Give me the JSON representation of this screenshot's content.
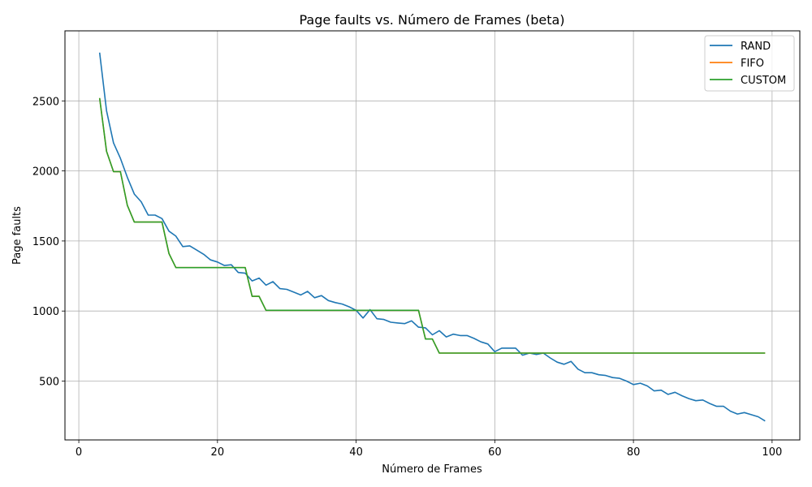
{
  "chart_data": {
    "type": "line",
    "title": "Page faults vs. Número de Frames (beta)",
    "xlabel": "Número de Frames",
    "ylabel": "Page faults",
    "xlim": [
      -2,
      104
    ],
    "ylim": [
      80,
      3000
    ],
    "xticks": [
      0,
      20,
      40,
      60,
      80,
      100
    ],
    "yticks": [
      500,
      1000,
      1500,
      2000,
      2500
    ],
    "grid": true,
    "legend_position": "top-right",
    "x": [
      3,
      4,
      5,
      6,
      7,
      8,
      9,
      10,
      11,
      12,
      13,
      14,
      15,
      16,
      17,
      18,
      19,
      20,
      21,
      22,
      23,
      24,
      25,
      26,
      27,
      28,
      29,
      30,
      31,
      32,
      33,
      34,
      35,
      36,
      37,
      38,
      39,
      40,
      41,
      42,
      43,
      44,
      45,
      46,
      47,
      48,
      49,
      50,
      51,
      52,
      53,
      54,
      55,
      56,
      57,
      58,
      59,
      60,
      61,
      62,
      63,
      64,
      65,
      66,
      67,
      68,
      69,
      70,
      71,
      72,
      73,
      74,
      75,
      76,
      77,
      78,
      79,
      80,
      81,
      82,
      83,
      84,
      85,
      86,
      87,
      88,
      89,
      90,
      91,
      92,
      93,
      94,
      95,
      96,
      97,
      98,
      99
    ],
    "series": [
      {
        "name": "RAND",
        "color": "#1f77b4",
        "values": [
          2845,
          2430,
          2200,
          2090,
          1955,
          1835,
          1780,
          1685,
          1685,
          1660,
          1570,
          1535,
          1460,
          1465,
          1435,
          1405,
          1365,
          1350,
          1325,
          1330,
          1275,
          1270,
          1215,
          1235,
          1185,
          1210,
          1160,
          1155,
          1135,
          1115,
          1140,
          1095,
          1110,
          1075,
          1060,
          1050,
          1030,
          1005,
          950,
          1010,
          945,
          940,
          920,
          915,
          910,
          930,
          885,
          880,
          830,
          860,
          815,
          835,
          825,
          825,
          805,
          780,
          765,
          710,
          735,
          735,
          735,
          685,
          700,
          690,
          700,
          665,
          635,
          620,
          640,
          585,
          560,
          560,
          545,
          540,
          525,
          520,
          500,
          475,
          485,
          465,
          430,
          435,
          405,
          420,
          395,
          375,
          360,
          365,
          340,
          320,
          320,
          285,
          265,
          275,
          260,
          245,
          215
        ]
      },
      {
        "name": "FIFO",
        "color": "#ff7f0e",
        "values": [
          2520,
          2140,
          1995,
          1995,
          1755,
          1635,
          1635,
          1635,
          1635,
          1635,
          1410,
          1310,
          1310,
          1310,
          1310,
          1310,
          1310,
          1310,
          1310,
          1310,
          1310,
          1310,
          1105,
          1105,
          1005,
          1005,
          1005,
          1005,
          1005,
          1005,
          1005,
          1005,
          1005,
          1005,
          1005,
          1005,
          1005,
          1005,
          1005,
          1005,
          1005,
          1005,
          1005,
          1005,
          1005,
          1005,
          1005,
          800,
          800,
          700,
          700,
          700,
          700,
          700,
          700,
          700,
          700,
          700,
          700,
          700,
          700,
          700,
          700,
          700,
          700,
          700,
          700,
          700,
          700,
          700,
          700,
          700,
          700,
          700,
          700,
          700,
          700,
          700,
          700,
          700,
          700,
          700,
          700,
          700,
          700,
          700,
          700,
          700,
          700,
          700,
          700,
          700,
          700,
          700,
          700,
          700,
          700
        ]
      },
      {
        "name": "CUSTOM",
        "color": "#2ca02c",
        "values": [
          2520,
          2140,
          1995,
          1995,
          1755,
          1635,
          1635,
          1635,
          1635,
          1635,
          1410,
          1310,
          1310,
          1310,
          1310,
          1310,
          1310,
          1310,
          1310,
          1310,
          1310,
          1310,
          1105,
          1105,
          1005,
          1005,
          1005,
          1005,
          1005,
          1005,
          1005,
          1005,
          1005,
          1005,
          1005,
          1005,
          1005,
          1005,
          1005,
          1005,
          1005,
          1005,
          1005,
          1005,
          1005,
          1005,
          1005,
          800,
          800,
          700,
          700,
          700,
          700,
          700,
          700,
          700,
          700,
          700,
          700,
          700,
          700,
          700,
          700,
          700,
          700,
          700,
          700,
          700,
          700,
          700,
          700,
          700,
          700,
          700,
          700,
          700,
          700,
          700,
          700,
          700,
          700,
          700,
          700,
          700,
          700,
          700,
          700,
          700,
          700,
          700,
          700,
          700,
          700,
          700,
          700,
          700,
          700
        ]
      }
    ]
  }
}
